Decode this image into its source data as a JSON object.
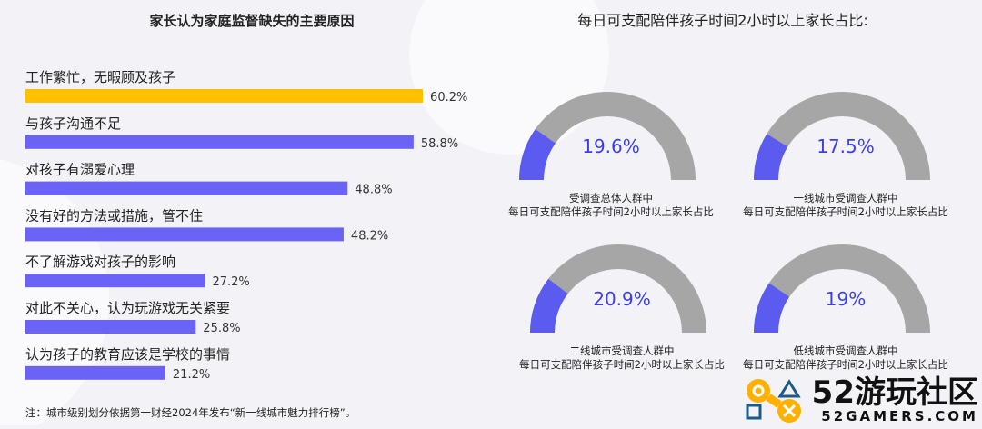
{
  "chart_data": [
    {
      "type": "bar",
      "orientation": "horizontal",
      "title": "家长认为家庭监督缺失的主要原因",
      "categories": [
        "工作繁忙，无暇顾及孩子",
        "与孩子沟通不足",
        "对孩子有溺爱心理",
        "没有好的方法或措施，管不住",
        "不了解游戏对孩子的影响",
        "对此不关心，认为玩游戏无关紧要",
        "认为孩子的教育应该是学校的事情"
      ],
      "values": [
        60.2,
        58.8,
        48.8,
        48.2,
        27.2,
        25.8,
        21.2
      ],
      "labels": [
        "60.2%",
        "58.8%",
        "48.8%",
        "48.2%",
        "27.2%",
        "25.8%",
        "21.2%"
      ],
      "colors": [
        "#ffc000",
        "#6a63f5",
        "#6a63f5",
        "#6a63f5",
        "#6a63f5",
        "#6a63f5",
        "#6a63f5"
      ]
    },
    {
      "type": "gauge",
      "title": "每日可支配陪伴孩子时间2小时以上家长占比:",
      "items": [
        {
          "value": 19.6,
          "label": "19.6%",
          "caption1": "受调查总体人群中",
          "caption2": "每日可支配陪伴孩子时间2小时以上家长占比"
        },
        {
          "value": 17.5,
          "label": "17.5%",
          "caption1": "一线城市受调查人群中",
          "caption2": "每日可支配陪伴孩子时间2小时以上家长占比"
        },
        {
          "value": 20.9,
          "label": "20.9%",
          "caption1": "二线城市受调查人群中",
          "caption2": "每日可支配陪伴孩子时间2小时以上家长占比"
        },
        {
          "value": 19,
          "label": "19%",
          "caption1": "低线城市受调查人群中",
          "caption2": "每日可支配陪伴孩子时间2小时以上家长占比"
        }
      ],
      "fill_color": "#5b5bef",
      "track_color": "#a6a6a6",
      "value_color": "#3d3df0"
    }
  ],
  "note": "注：城市级别划分依据第一财经2024年发布“新一线城市魅力排行榜”。",
  "watermark": {
    "text": "52游玩社区",
    "url_text": "52GAMERS.COM"
  }
}
